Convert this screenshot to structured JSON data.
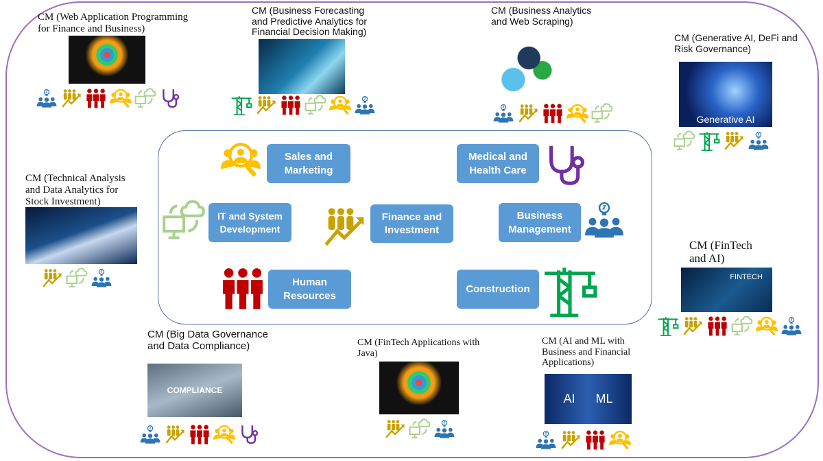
{
  "colors": {
    "outer_border": "#9b6fc0",
    "center_border": "#4a6ea8",
    "button": "#5b9bd5",
    "management": "#2e75b6",
    "finance": "#c9a200",
    "hr": "#c00000",
    "sales": "#ffc000",
    "it": "#a9d18e",
    "medical": "#7030a0",
    "construction": "#00a550"
  },
  "sectors": [
    {
      "id": "sales",
      "label": "Sales and Marketing",
      "icon": "sales-icon"
    },
    {
      "id": "med",
      "label": "Medical and Health Care",
      "icon": "stethoscope-icon"
    },
    {
      "id": "it",
      "label": "IT and System Development",
      "icon": "monitor-cloud-icon"
    },
    {
      "id": "fin",
      "label": "Finance and Investment",
      "icon": "finance-growth-icon"
    },
    {
      "id": "mgmt",
      "label": "Business Management",
      "icon": "team-idea-icon"
    },
    {
      "id": "hr",
      "label": "Human Resources",
      "icon": "people-icon"
    },
    {
      "id": "cons",
      "label": "Construction",
      "icon": "crane-icon"
    }
  ],
  "modules": [
    {
      "title": "CM (Web Application Programming for Finance and Business)",
      "image": "app-icons-tablet",
      "icons": [
        "mgmt",
        "fin",
        "hr",
        "sales",
        "it",
        "med"
      ]
    },
    {
      "title": "CM (Business Forecasting and Predictive Analytics for Financial Decision Making)",
      "image": "forecast-tablet",
      "icons": [
        "cons",
        "fin",
        "hr",
        "it",
        "sales",
        "mgmt"
      ]
    },
    {
      "title": "CM (Business Analytics and Web Scraping)",
      "image": "gears-analytics",
      "icons": [
        "mgmt",
        "fin",
        "hr",
        "sales",
        "it"
      ]
    },
    {
      "title": "CM (Generative AI, DeFi and Risk Governance)",
      "image": "brain",
      "image_text": "Generative AI",
      "icons": [
        "it",
        "cons",
        "fin",
        "mgmt"
      ]
    },
    {
      "title": "CM (Technical Analysis and Data Analytics for Stock Investment)",
      "image": "stock-chart",
      "icons": [
        "fin",
        "it",
        "mgmt"
      ]
    },
    {
      "title": "CM (FinTech and AI)",
      "image": "fintech",
      "image_text": "FINTECH",
      "icons": [
        "cons",
        "fin",
        "hr",
        "it",
        "sales",
        "mgmt"
      ]
    },
    {
      "title": "CM (Big Data Governance and Data Compliance)",
      "image": "compliance",
      "image_text": "COMPLIANCE",
      "icons": [
        "mgmt",
        "fin",
        "hr",
        "sales",
        "med"
      ]
    },
    {
      "title": "CM (FinTech Applications with Java)",
      "image": "app-icons-tablet",
      "icons": [
        "fin",
        "it",
        "mgmt"
      ]
    },
    {
      "title": "CM (AI and ML with Business and Financial Applications)",
      "image": "ai-ml",
      "image_text": "AI      ML",
      "icons": [
        "mgmt",
        "fin",
        "hr",
        "sales"
      ]
    }
  ]
}
